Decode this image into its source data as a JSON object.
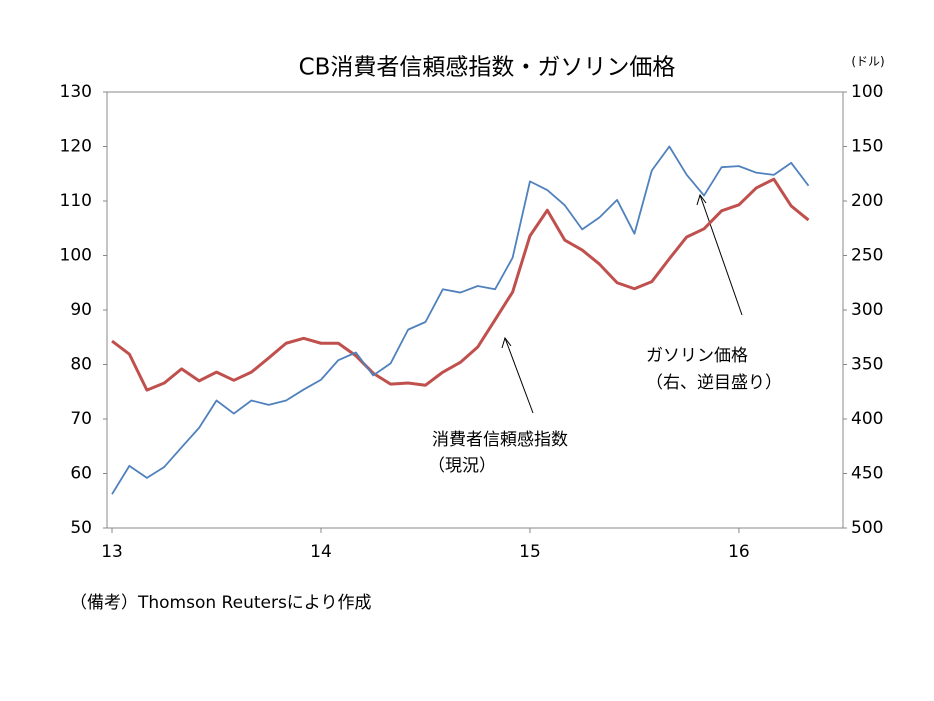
{
  "chart_data": {
    "type": "line",
    "title": "CB消費者信頼感指数・ガソリン価格",
    "y2_unit": "(ドル)",
    "note": "（備考）Thomson Reutersにより作成",
    "annotations": [
      {
        "lines": [
          "消費者信頼感指数",
          "（現況）"
        ]
      },
      {
        "lines": [
          "ガソリン価格",
          "（右、逆目盛り）"
        ]
      }
    ],
    "x": [
      13,
      13.083,
      13.167,
      13.25,
      13.333,
      13.417,
      13.5,
      13.583,
      13.667,
      13.75,
      13.833,
      13.917,
      14,
      14.083,
      14.167,
      14.25,
      14.333,
      14.417,
      14.5,
      14.583,
      14.667,
      14.75,
      14.833,
      14.917,
      15,
      15.083,
      15.167,
      15.25,
      15.333,
      15.417,
      15.5,
      15.583,
      15.667,
      15.75,
      15.833,
      15.917,
      16,
      16.083,
      16.167,
      16.25,
      16.333
    ],
    "xlim": [
      12.976,
      16.498
    ],
    "xticks": [
      13,
      14,
      15,
      16
    ],
    "ylim": [
      50,
      130
    ],
    "yticks": [
      50,
      60,
      70,
      80,
      90,
      100,
      110,
      120,
      130
    ],
    "y2lim": [
      100,
      500
    ],
    "y2ticks": [
      100,
      150,
      200,
      250,
      300,
      350,
      400,
      450,
      500
    ],
    "y2_reversed": true,
    "grid": false,
    "series": [
      {
        "color": "#c0504d",
        "width": 3,
        "values": [
          84.3,
          81.9,
          75.3,
          76.6,
          79.2,
          77.0,
          78.6,
          77.1,
          78.6,
          81.2,
          83.9,
          84.8,
          83.9,
          83.9,
          81.6,
          78.4,
          76.4,
          76.6,
          76.2,
          78.6,
          80.4,
          83.2,
          88.2,
          93.3,
          103.6,
          108.3,
          102.8,
          101.0,
          98.4,
          95.0,
          93.9,
          95.2,
          99.4,
          103.4,
          104.9,
          108.2,
          109.3,
          112.4,
          114.0,
          109.1,
          106.5
        ]
      },
      {
        "color": "#4f81bd",
        "width": 1.8,
        "axis": "y2",
        "values": [
          469,
          443,
          454,
          444,
          426,
          408,
          383,
          395,
          383,
          387,
          383,
          373,
          364,
          346,
          339,
          360,
          349,
          318,
          311,
          281,
          284,
          278,
          281,
          252,
          182,
          190,
          204,
          226,
          215,
          199,
          230,
          172,
          150,
          176,
          195,
          169,
          168,
          174,
          176,
          165,
          186
        ]
      }
    ]
  }
}
